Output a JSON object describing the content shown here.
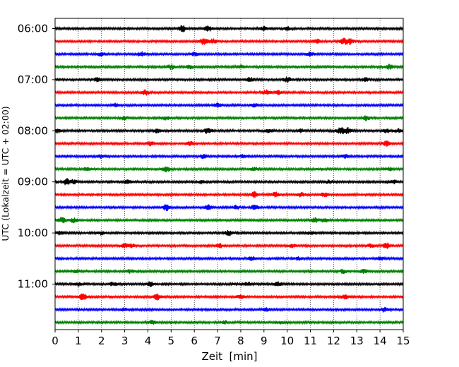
{
  "chart_data": {
    "type": "line",
    "title": "",
    "xlabel": "Zeit  [min]",
    "ylabel": "UTC (Lokalzeit = UTC + 02:00)",
    "xlim": [
      0,
      15
    ],
    "x_ticks": [
      0,
      1,
      2,
      3,
      4,
      5,
      6,
      7,
      8,
      9,
      10,
      11,
      12,
      13,
      14,
      15
    ],
    "x_tick_labels": [
      "0",
      "1",
      "2",
      "3",
      "4",
      "5",
      "6",
      "7",
      "8",
      "9",
      "10",
      "11",
      "12",
      "13",
      "14",
      "15"
    ],
    "y_tick_labels": [
      "06:00",
      "07:00",
      "08:00",
      "09:00",
      "10:00",
      "11:00"
    ],
    "y_tick_rows": [
      0,
      4,
      8,
      12,
      16,
      20
    ],
    "vertical_grid": true,
    "grid_style": "dotted",
    "trace_colors": [
      "#000000",
      "#ff0000",
      "#0000ff",
      "#008000"
    ],
    "rows": [
      {
        "start": "06:00",
        "bursts": [
          [
            5.5,
            1.0
          ],
          [
            6.6,
            0.9
          ],
          [
            9.0,
            0.6
          ],
          [
            10.0,
            0.5
          ]
        ]
      },
      {
        "start": "06:15",
        "bursts": [
          [
            6.4,
            1.0
          ],
          [
            6.8,
            0.7
          ],
          [
            11.3,
            0.6
          ],
          [
            12.4,
            1.0
          ],
          [
            12.7,
            0.8
          ]
        ]
      },
      {
        "start": "06:30",
        "bursts": [
          [
            2.0,
            0.6
          ],
          [
            3.7,
            0.7
          ],
          [
            6.0,
            0.5
          ],
          [
            11.0,
            0.6
          ]
        ]
      },
      {
        "start": "06:45",
        "bursts": [
          [
            5.0,
            0.7
          ],
          [
            5.8,
            0.5
          ],
          [
            8.0,
            0.5
          ],
          [
            14.4,
            0.7
          ]
        ]
      },
      {
        "start": "07:00",
        "bursts": [
          [
            1.8,
            0.6
          ],
          [
            8.4,
            0.7
          ],
          [
            10.0,
            0.8
          ],
          [
            13.4,
            0.6
          ]
        ]
      },
      {
        "start": "07:15",
        "bursts": [
          [
            3.9,
            0.8
          ],
          [
            9.1,
            0.7
          ],
          [
            9.6,
            0.6
          ]
        ]
      },
      {
        "start": "07:30",
        "bursts": [
          [
            2.6,
            0.5
          ],
          [
            7.0,
            0.6
          ],
          [
            8.6,
            0.5
          ]
        ]
      },
      {
        "start": "07:45",
        "bursts": [
          [
            3.0,
            0.5
          ],
          [
            4.8,
            0.5
          ],
          [
            13.4,
            0.7
          ]
        ]
      },
      {
        "start": "08:00",
        "bursts": [
          [
            0.1,
            0.6
          ],
          [
            4.4,
            0.6
          ],
          [
            6.6,
            1.0
          ],
          [
            9.2,
            0.6
          ],
          [
            10.6,
            0.5
          ],
          [
            12.3,
            1.0
          ],
          [
            12.6,
            0.9
          ],
          [
            14.3,
            0.6
          ],
          [
            14.8,
            0.6
          ]
        ]
      },
      {
        "start": "08:15",
        "bursts": [
          [
            4.1,
            0.6
          ],
          [
            5.8,
            0.7
          ],
          [
            14.3,
            0.8
          ]
        ]
      },
      {
        "start": "08:30",
        "bursts": [
          [
            2.0,
            0.5
          ],
          [
            6.4,
            0.6
          ],
          [
            8.1,
            0.5
          ],
          [
            12.5,
            0.5
          ]
        ]
      },
      {
        "start": "08:45",
        "bursts": [
          [
            1.4,
            0.5
          ],
          [
            4.8,
            0.8
          ],
          [
            8.6,
            0.5
          ],
          [
            14.4,
            0.5
          ]
        ]
      },
      {
        "start": "09:00",
        "bursts": [
          [
            0.5,
            0.9
          ],
          [
            0.8,
            0.6
          ],
          [
            3.1,
            0.5
          ],
          [
            6.3,
            0.5
          ],
          [
            11.8,
            0.5
          ],
          [
            14.6,
            0.5
          ]
        ]
      },
      {
        "start": "09:15",
        "bursts": [
          [
            8.6,
            0.8
          ],
          [
            9.5,
            0.8
          ],
          [
            10.6,
            0.7
          ],
          [
            11.6,
            0.6
          ]
        ]
      },
      {
        "start": "09:30",
        "bursts": [
          [
            4.8,
            1.0
          ],
          [
            6.6,
            0.7
          ],
          [
            7.8,
            0.6
          ],
          [
            8.6,
            0.7
          ]
        ]
      },
      {
        "start": "09:45",
        "bursts": [
          [
            0.3,
            0.8
          ],
          [
            0.8,
            0.7
          ],
          [
            11.2,
            0.7
          ],
          [
            11.6,
            0.6
          ]
        ]
      },
      {
        "start": "10:00",
        "bursts": [
          [
            0.2,
            0.6
          ],
          [
            2.0,
            0.5
          ],
          [
            7.5,
            0.8
          ],
          [
            11.0,
            0.5
          ]
        ]
      },
      {
        "start": "10:15",
        "bursts": [
          [
            3.0,
            0.6
          ],
          [
            3.3,
            0.5
          ],
          [
            7.1,
            0.6
          ],
          [
            10.2,
            0.6
          ],
          [
            13.6,
            0.5
          ],
          [
            14.3,
            0.8
          ]
        ]
      },
      {
        "start": "10:30",
        "bursts": [
          [
            8.5,
            0.6
          ],
          [
            10.5,
            0.5
          ],
          [
            14.0,
            0.5
          ]
        ]
      },
      {
        "start": "10:45",
        "bursts": [
          [
            0.9,
            0.5
          ],
          [
            3.2,
            0.6
          ],
          [
            12.4,
            0.6
          ],
          [
            13.3,
            0.5
          ]
        ]
      },
      {
        "start": "11:00",
        "bursts": [
          [
            1.0,
            0.5
          ],
          [
            2.5,
            0.6
          ],
          [
            4.1,
            0.7
          ],
          [
            8.3,
            0.5
          ],
          [
            9.6,
            0.6
          ]
        ]
      },
      {
        "start": "11:15",
        "bursts": [
          [
            1.2,
            1.0
          ],
          [
            4.4,
            1.0
          ],
          [
            8.0,
            0.6
          ],
          [
            12.5,
            0.7
          ]
        ]
      },
      {
        "start": "11:30",
        "bursts": [
          [
            3.0,
            0.5
          ],
          [
            9.1,
            0.6
          ],
          [
            14.2,
            0.7
          ]
        ]
      },
      {
        "start": "11:45",
        "bursts": [
          [
            4.2,
            0.6
          ],
          [
            7.3,
            0.5
          ],
          [
            9.7,
            0.4
          ]
        ]
      }
    ]
  }
}
